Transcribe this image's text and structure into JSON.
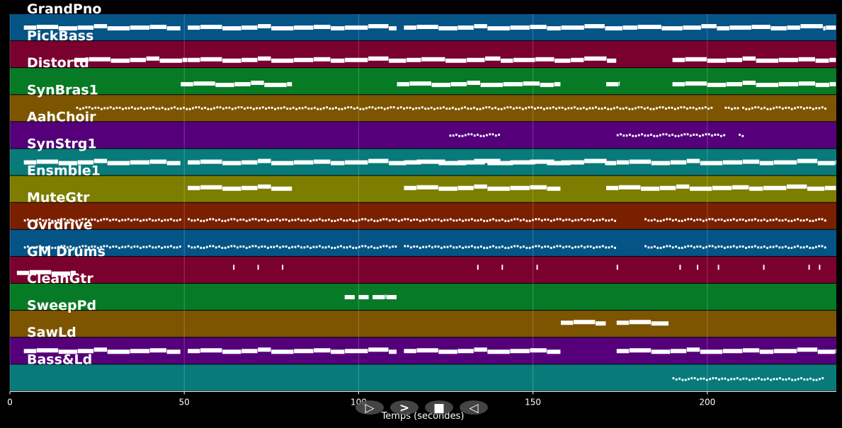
{
  "chart_data": {
    "type": "piano-roll",
    "xlabel": "Temps (secondes)",
    "xlim": [
      0,
      237
    ],
    "xticks": [
      0,
      50,
      100,
      150,
      200
    ],
    "grid": true,
    "tracks": [
      {
        "name": "GrandPno",
        "color": "#055486",
        "density": "sparse",
        "pitch": 0.5,
        "segments": [
          [
            4,
            49
          ],
          [
            51,
            111
          ],
          [
            113,
            234
          ],
          [
            234,
            237
          ]
        ]
      },
      {
        "name": "PickBass",
        "color": "#7a002d",
        "density": "sparse",
        "pitch": 0.7,
        "segments": [
          [
            19,
            51
          ],
          [
            51,
            174
          ],
          [
            190,
            235
          ],
          [
            235,
            237
          ]
        ]
      },
      {
        "name": "Distortd",
        "color": "#077a25",
        "density": "sparse",
        "pitch": 0.6,
        "segments": [
          [
            49,
            81
          ],
          [
            111,
            158
          ],
          [
            171,
            175
          ],
          [
            190,
            237
          ]
        ]
      },
      {
        "name": "SynBras1",
        "color": "#7d5500",
        "density": "dense",
        "pitch": 0.45,
        "segments": [
          [
            19,
            111
          ],
          [
            111,
            202
          ],
          [
            205,
            209
          ],
          [
            210,
            234
          ]
        ]
      },
      {
        "name": "AahChoir",
        "color": "#55007a",
        "density": "dense",
        "pitch": 0.45,
        "segments": [
          [
            126,
            141
          ],
          [
            174,
            205
          ],
          [
            209,
            211
          ]
        ]
      },
      {
        "name": "SynStrg1",
        "color": "#087a7a",
        "density": "sparse",
        "pitch": 0.5,
        "segments": [
          [
            4,
            49
          ],
          [
            51,
            174
          ],
          [
            113,
            172
          ],
          [
            174,
            237
          ]
        ]
      },
      {
        "name": "Ensmble1",
        "color": "#7d7d00",
        "density": "sparse",
        "pitch": 0.45,
        "segments": [
          [
            51,
            81
          ],
          [
            113,
            158
          ],
          [
            171,
            237
          ]
        ]
      },
      {
        "name": "MuteGtr",
        "color": "#7a2000",
        "density": "dense",
        "pitch": 0.6,
        "segments": [
          [
            4,
            49
          ],
          [
            51,
            174
          ],
          [
            182,
            234
          ]
        ]
      },
      {
        "name": "Ovrdrive",
        "color": "#055486",
        "density": "dense",
        "pitch": 0.6,
        "segments": [
          [
            4,
            49
          ],
          [
            51,
            111
          ],
          [
            113,
            174
          ],
          [
            182,
            234
          ]
        ]
      },
      {
        "name": "GM Drums",
        "color": "#7a002d",
        "density": "sparse",
        "pitch": 0.6,
        "segments": [
          [
            2,
            19
          ]
        ],
        "hits": [
          64,
          71,
          78,
          134,
          141,
          151,
          174,
          192,
          197,
          203,
          216,
          229,
          232
        ]
      },
      {
        "name": "CleanGtr",
        "color": "#077a25",
        "density": "sparse",
        "pitch": 0.5,
        "segments": [
          [
            96,
            99
          ],
          [
            100,
            103
          ],
          [
            104,
            108
          ],
          [
            108,
            111
          ]
        ]
      },
      {
        "name": "SweepPd",
        "color": "#7d5500",
        "density": "sparse",
        "pitch": 0.45,
        "segments": [
          [
            158,
            171
          ],
          [
            174,
            189
          ]
        ]
      },
      {
        "name": "SawLd",
        "color": "#55007a",
        "density": "sparse",
        "pitch": 0.5,
        "segments": [
          [
            4,
            49
          ],
          [
            51,
            111
          ],
          [
            113,
            158
          ],
          [
            174,
            237
          ]
        ]
      },
      {
        "name": "Bass&Ld",
        "color": "#087a7a",
        "density": "dense",
        "pitch": 0.5,
        "segments": [
          [
            190,
            234
          ]
        ]
      }
    ]
  },
  "controls": [
    {
      "name": "play-icon",
      "glyph": "▷"
    },
    {
      "name": "fast-forward-icon",
      "glyph": ">"
    },
    {
      "name": "stop-icon",
      "glyph": "■"
    },
    {
      "name": "rewind-icon",
      "glyph": "◁"
    }
  ]
}
